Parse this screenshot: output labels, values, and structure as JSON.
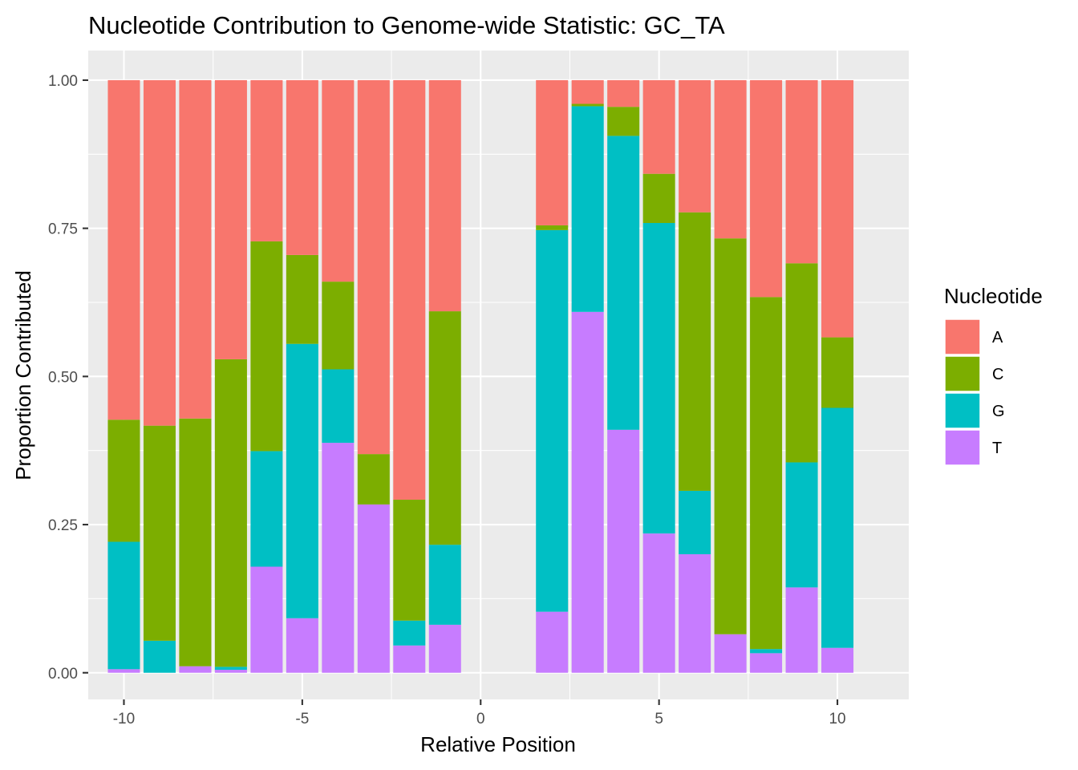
{
  "chart_data": {
    "type": "bar",
    "stacked": true,
    "title": "Nucleotide Contribution to Genome-wide Statistic: GC_TA",
    "xlabel": "Relative Position",
    "ylabel": "Proportion Contributed",
    "xlim": [
      -11,
      12
    ],
    "ylim": [
      -0.045,
      1.05
    ],
    "x_ticks": [
      -10,
      -5,
      0,
      5,
      10
    ],
    "x_tick_labels": [
      "-10",
      "-5",
      "0",
      "5",
      "10"
    ],
    "y_ticks": [
      0,
      0.25,
      0.5,
      0.75,
      1
    ],
    "y_tick_labels": [
      "0.00",
      "0.25",
      "0.50",
      "0.75",
      "1.00"
    ],
    "grid": true,
    "legend_position": "right",
    "legend_title": "Nucleotide",
    "x": [
      -10,
      -9,
      -8,
      -7,
      -6,
      -5,
      -4,
      -3,
      -2,
      -1,
      2,
      3,
      4,
      5,
      6,
      7,
      8,
      9,
      10
    ],
    "series": [
      {
        "name": "T",
        "color": "#C77CFF",
        "values": [
          0.006,
          0.0,
          0.011,
          0.005,
          0.179,
          0.092,
          0.388,
          0.284,
          0.046,
          0.081,
          0.103,
          0.609,
          0.41,
          0.235,
          0.2,
          0.065,
          0.033,
          0.144,
          0.042
        ]
      },
      {
        "name": "G",
        "color": "#00BFC4",
        "values": [
          0.215,
          0.054,
          0.0,
          0.005,
          0.195,
          0.463,
          0.124,
          0.0,
          0.042,
          0.135,
          0.644,
          0.347,
          0.496,
          0.524,
          0.107,
          0.0,
          0.007,
          0.211,
          0.405
        ]
      },
      {
        "name": "C",
        "color": "#7CAE00",
        "values": [
          0.206,
          0.363,
          0.418,
          0.519,
          0.354,
          0.15,
          0.148,
          0.085,
          0.204,
          0.394,
          0.008,
          0.004,
          0.049,
          0.083,
          0.47,
          0.668,
          0.594,
          0.336,
          0.119
        ]
      },
      {
        "name": "A",
        "color": "#F8766D",
        "values": [
          0.573,
          0.583,
          0.571,
          0.471,
          0.272,
          0.295,
          0.34,
          0.631,
          0.708,
          0.39,
          0.245,
          0.04,
          0.045,
          0.158,
          0.223,
          0.267,
          0.366,
          0.309,
          0.434
        ]
      }
    ],
    "legend_order": [
      "A",
      "C",
      "G",
      "T"
    ]
  },
  "colors": {
    "panel_bg": "#EBEBEB",
    "grid_major": "#FFFFFF",
    "tick_color": "#333333"
  }
}
